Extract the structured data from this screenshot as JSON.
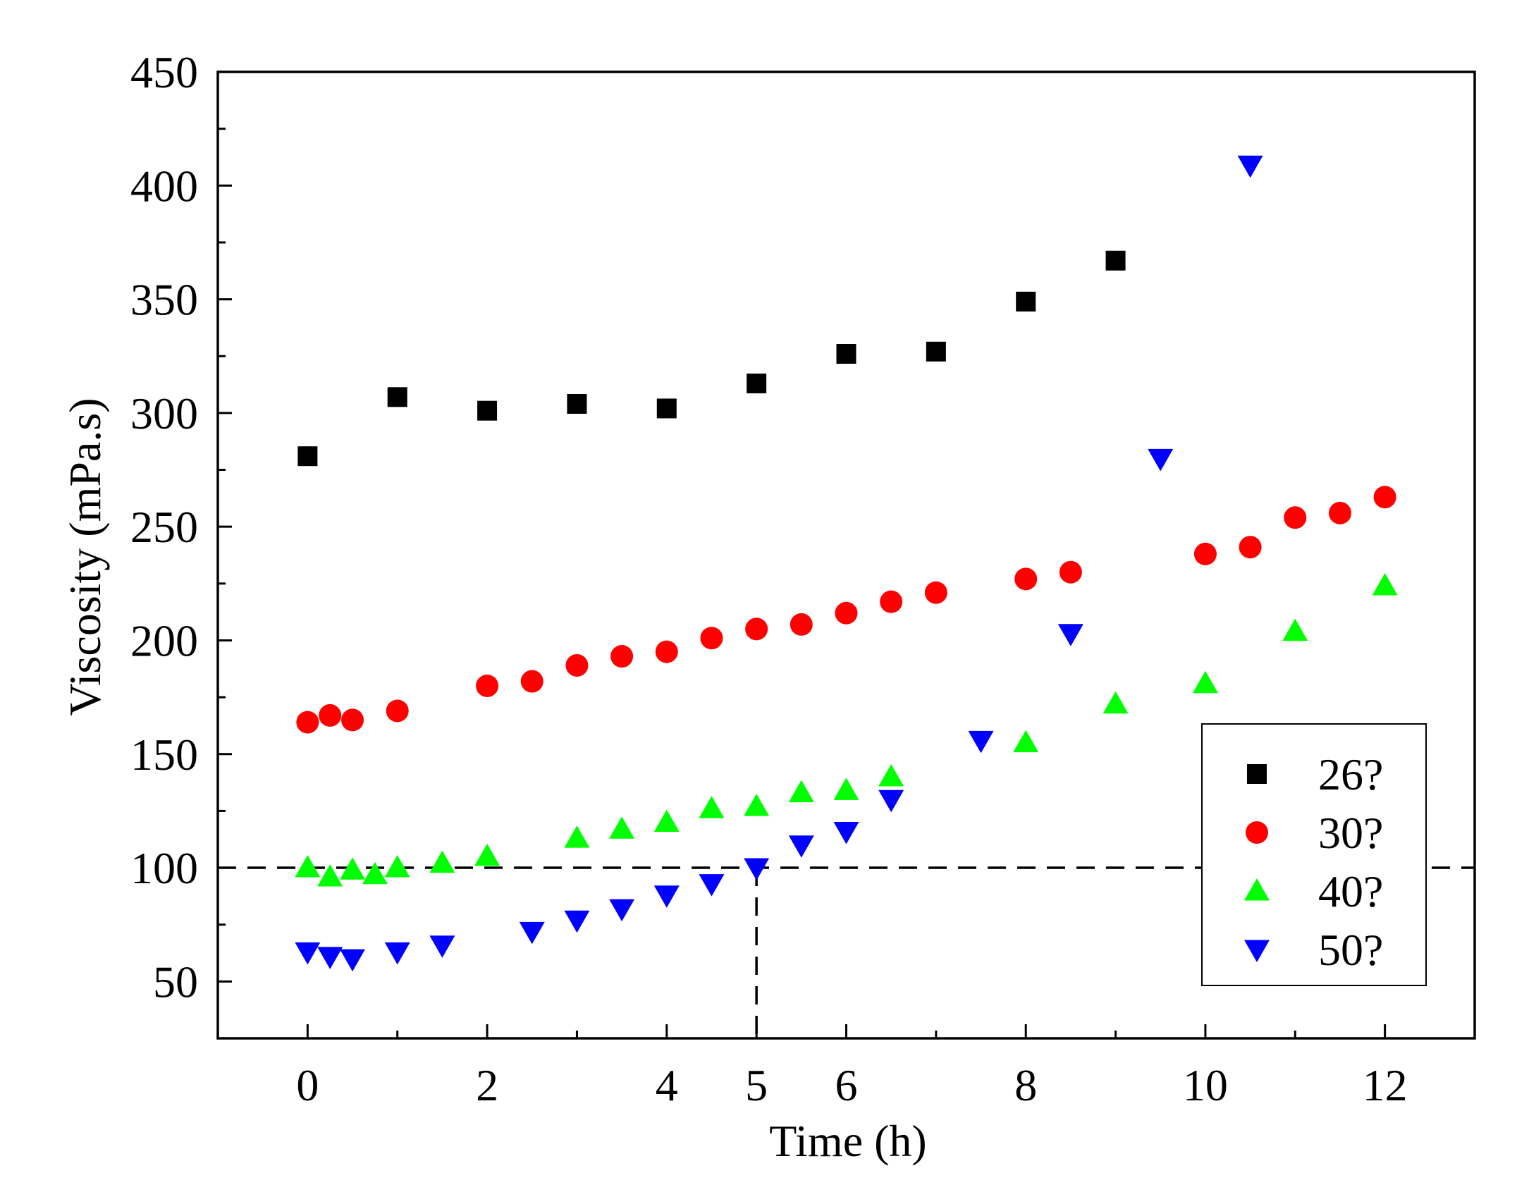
{
  "chart_data": {
    "type": "scatter",
    "title": "",
    "xlabel": "Time (h)",
    "ylabel": "Viscosity (mPa.s)",
    "xlim": [
      -1,
      13
    ],
    "ylim": [
      25,
      450
    ],
    "x_ticks": [
      0,
      2,
      4,
      5,
      6,
      8,
      10,
      12
    ],
    "x_tick_labels": [
      "0",
      "2",
      "4",
      "5",
      "6",
      "8",
      "10",
      "12"
    ],
    "x_minor_ticks": [
      1,
      3,
      7,
      9,
      11
    ],
    "y_ticks": [
      50,
      100,
      150,
      200,
      250,
      300,
      350,
      400,
      450
    ],
    "y_tick_labels": [
      "50",
      "100",
      "150",
      "200",
      "250",
      "300",
      "350",
      "400",
      "450"
    ],
    "y_minor_ticks": [
      75,
      125,
      175,
      225,
      275,
      325,
      375,
      425
    ],
    "grid": false,
    "legend_position": "bottom-right",
    "reference_lines": [
      {
        "orientation": "horizontal",
        "value": 100,
        "style": "dashed"
      },
      {
        "orientation": "vertical",
        "value": 5,
        "from": 25,
        "to": 100,
        "style": "dashed"
      }
    ],
    "series": [
      {
        "name": "26?",
        "marker": "square",
        "color": "#000000",
        "points": [
          [
            0,
            281
          ],
          [
            1,
            307
          ],
          [
            2,
            301
          ],
          [
            3,
            304
          ],
          [
            4,
            302
          ],
          [
            5,
            313
          ],
          [
            6,
            326
          ],
          [
            7,
            327
          ],
          [
            8,
            349
          ],
          [
            9,
            367
          ]
        ]
      },
      {
        "name": "30?",
        "marker": "circle",
        "color": "#ff0000",
        "points": [
          [
            0,
            164
          ],
          [
            0.25,
            167
          ],
          [
            0.5,
            165
          ],
          [
            1,
            169
          ],
          [
            2,
            180
          ],
          [
            2.5,
            182
          ],
          [
            3,
            189
          ],
          [
            3.5,
            193
          ],
          [
            4,
            195
          ],
          [
            4.5,
            201
          ],
          [
            5,
            205
          ],
          [
            5.5,
            207
          ],
          [
            6,
            212
          ],
          [
            6.5,
            217
          ],
          [
            7,
            221
          ],
          [
            8,
            227
          ],
          [
            8.5,
            230
          ],
          [
            10,
            238
          ],
          [
            10.5,
            241
          ],
          [
            11,
            254
          ],
          [
            11.5,
            256
          ],
          [
            12,
            263
          ]
        ]
      },
      {
        "name": "40?",
        "marker": "triangle-up",
        "color": "#00ff00",
        "points": [
          [
            0,
            100
          ],
          [
            0.25,
            96
          ],
          [
            0.5,
            99
          ],
          [
            0.75,
            97
          ],
          [
            1,
            100
          ],
          [
            1.5,
            102
          ],
          [
            2,
            105
          ],
          [
            3,
            113
          ],
          [
            3.5,
            117
          ],
          [
            4,
            120
          ],
          [
            4.5,
            126
          ],
          [
            5,
            127
          ],
          [
            5.5,
            133
          ],
          [
            6,
            134
          ],
          [
            6.5,
            140
          ],
          [
            8,
            155
          ],
          [
            9,
            172
          ],
          [
            10,
            181
          ],
          [
            11,
            204
          ],
          [
            12,
            224
          ]
        ]
      },
      {
        "name": "50?",
        "marker": "triangle-down",
        "color": "#0000ff",
        "points": [
          [
            0,
            63
          ],
          [
            0.25,
            61
          ],
          [
            0.5,
            60
          ],
          [
            1,
            63
          ],
          [
            1.5,
            66
          ],
          [
            2.5,
            72
          ],
          [
            3,
            77
          ],
          [
            3.5,
            82
          ],
          [
            4,
            88
          ],
          [
            4.5,
            93
          ],
          [
            5,
            100
          ],
          [
            5.5,
            110
          ],
          [
            6,
            116
          ],
          [
            6.5,
            130
          ],
          [
            7.5,
            156
          ],
          [
            8.5,
            203
          ],
          [
            9.5,
            280
          ],
          [
            10.5,
            409
          ]
        ]
      }
    ]
  }
}
